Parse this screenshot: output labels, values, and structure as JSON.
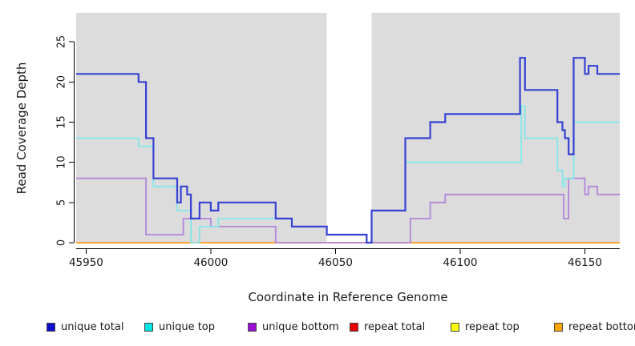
{
  "xlabel": "Coordinate in Reference Genome",
  "ylabel": "Read Coverage Depth",
  "chart_data": {
    "type": "line",
    "step": true,
    "title": "",
    "xlabel": "Coordinate in Reference Genome",
    "ylabel": "Read Coverage Depth",
    "xlim": [
      45946,
      46164
    ],
    "ylim": [
      0,
      28.6
    ],
    "grid": false,
    "plot_bg_color": "#DCDCDC",
    "axis_color": "#000000",
    "mask_band": {
      "from": 46046.5,
      "to": 46064.5,
      "color": "#FFFFFF"
    },
    "x_ticks": [
      45950,
      46000,
      46050,
      46100,
      46150
    ],
    "x_tick_labels": [
      "45950",
      "46000",
      "46050",
      "46100",
      "46150"
    ],
    "y_ticks": [
      0,
      5,
      10,
      15,
      20,
      25
    ],
    "y_tick_labels": [
      "0",
      "5",
      "10",
      "15",
      "20",
      "25"
    ],
    "legend_position": "bottom",
    "series": [
      {
        "name": "unique total",
        "line_color": "#3642D4",
        "legend_color": "#0D0DD0",
        "line_width": 2.2,
        "draw_order": 6,
        "points": [
          [
            45946,
            21
          ],
          [
            45971,
            20
          ],
          [
            45974,
            13
          ],
          [
            45977,
            8
          ],
          [
            45986.5,
            5
          ],
          [
            45988,
            7
          ],
          [
            45990.5,
            6
          ],
          [
            45992,
            3
          ],
          [
            45995.5,
            5
          ],
          [
            46000,
            4
          ],
          [
            46003,
            5
          ],
          [
            46026,
            3
          ],
          [
            46032.5,
            2
          ],
          [
            46046.5,
            1
          ],
          [
            46062.5,
            0
          ],
          [
            46064.5,
            4
          ],
          [
            46078,
            13
          ],
          [
            46088,
            15
          ],
          [
            46094,
            16
          ],
          [
            46124,
            23
          ],
          [
            46126,
            19
          ],
          [
            46139,
            15
          ],
          [
            46141,
            14
          ],
          [
            46142,
            13
          ],
          [
            46143.5,
            11
          ],
          [
            46145.5,
            23
          ],
          [
            46150,
            21
          ],
          [
            46151.5,
            22
          ],
          [
            46155,
            21
          ]
        ]
      },
      {
        "name": "unique top",
        "line_color": "#82E7EA",
        "legend_color": "#00E4E4",
        "line_width": 1.8,
        "draw_order": 5,
        "points": [
          [
            45946,
            13
          ],
          [
            45971,
            12
          ],
          [
            45977,
            7
          ],
          [
            45986.5,
            4
          ],
          [
            45992,
            0
          ],
          [
            45995.5,
            2
          ],
          [
            46003,
            3
          ],
          [
            46032.5,
            2
          ],
          [
            46046.5,
            1
          ],
          [
            46062.5,
            0
          ],
          [
            46064.5,
            4
          ],
          [
            46078,
            10
          ],
          [
            46124.5,
            17
          ],
          [
            46126,
            13
          ],
          [
            46139,
            9
          ],
          [
            46141,
            7
          ],
          [
            46142,
            8
          ],
          [
            46145.5,
            15
          ]
        ]
      },
      {
        "name": "unique bottom",
        "line_color": "#B385DC",
        "legend_color": "#9A0FD6",
        "line_width": 1.8,
        "draw_order": 4,
        "points": [
          [
            45946,
            8
          ],
          [
            45974,
            1
          ],
          [
            45989,
            3
          ],
          [
            46000,
            2
          ],
          [
            46026,
            0
          ],
          [
            46080,
            3
          ],
          [
            46088,
            5
          ],
          [
            46094,
            6
          ],
          [
            46141.5,
            3
          ],
          [
            46143.5,
            8
          ],
          [
            46150,
            6
          ],
          [
            46151.5,
            7
          ],
          [
            46155,
            6
          ]
        ]
      },
      {
        "name": "repeat total",
        "line_color": "#D23A3A",
        "legend_color": "#E80000",
        "line_width": 1.8,
        "draw_order": 1,
        "points": [
          [
            45946,
            0
          ]
        ]
      },
      {
        "name": "repeat top",
        "line_color": "#EFEA48",
        "legend_color": "#FFFF00",
        "line_width": 1.8,
        "draw_order": 2,
        "points": [
          [
            45946,
            0
          ]
        ]
      },
      {
        "name": "repeat bottom",
        "line_color": "#FF9E2A",
        "legend_color": "#FFA500",
        "line_width": 2,
        "draw_order": 3,
        "points": [
          [
            45946,
            0
          ]
        ]
      }
    ]
  }
}
